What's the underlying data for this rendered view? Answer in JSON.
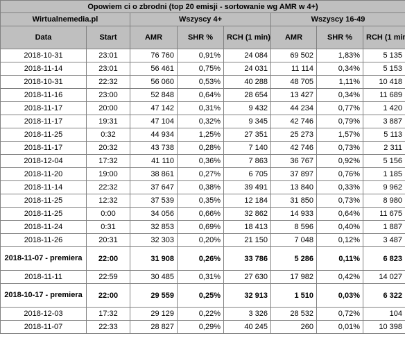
{
  "table": {
    "title": "Opowiem ci o zbrodni (top 20 emisji - sortowanie wg AMR w 4+)",
    "source": "Wirtualnemedia.pl",
    "group_4plus": "Wszyscy 4+",
    "group_16_49": "Wszyscy 16-49",
    "col_date": "Data",
    "col_start": "Start",
    "col_amr": "AMR",
    "col_shr": "SHR %",
    "col_rch": "RCH (1 min)",
    "rows": [
      {
        "date": "2018-10-31",
        "start": "23:01",
        "amr4": "76 760",
        "shr4": "0,91%",
        "rch4": "24 084",
        "amr16": "69 502",
        "shr16": "1,83%",
        "rch16": "5 135",
        "premiere": false
      },
      {
        "date": "2018-11-14",
        "start": "23:01",
        "amr4": "56 461",
        "shr4": "0,75%",
        "rch4": "24 031",
        "amr16": "11 114",
        "shr16": "0,34%",
        "rch16": "5 153",
        "premiere": false
      },
      {
        "date": "2018-10-31",
        "start": "22:32",
        "amr4": "56 060",
        "shr4": "0,53%",
        "rch4": "40 288",
        "amr16": "48 705",
        "shr16": "1,11%",
        "rch16": "10 418",
        "premiere": false
      },
      {
        "date": "2018-11-16",
        "start": "23:00",
        "amr4": "52 848",
        "shr4": "0,64%",
        "rch4": "28 654",
        "amr16": "13 427",
        "shr16": "0,34%",
        "rch16": "11 689",
        "premiere": false
      },
      {
        "date": "2018-11-17",
        "start": "20:00",
        "amr4": "47 142",
        "shr4": "0,31%",
        "rch4": "9 432",
        "amr16": "44 234",
        "shr16": "0,77%",
        "rch16": "1 420",
        "premiere": false
      },
      {
        "date": "2018-11-17",
        "start": "19:31",
        "amr4": "47 104",
        "shr4": "0,32%",
        "rch4": "9 345",
        "amr16": "42 746",
        "shr16": "0,79%",
        "rch16": "3 887",
        "premiere": false
      },
      {
        "date": "2018-11-25",
        "start": "0:32",
        "amr4": "44 934",
        "shr4": "1,25%",
        "rch4": "27 351",
        "amr16": "25 273",
        "shr16": "1,57%",
        "rch16": "5 113",
        "premiere": false
      },
      {
        "date": "2018-11-17",
        "start": "20:32",
        "amr4": "43 738",
        "shr4": "0,28%",
        "rch4": "7 140",
        "amr16": "42 746",
        "shr16": "0,73%",
        "rch16": "2 311",
        "premiere": false
      },
      {
        "date": "2018-12-04",
        "start": "17:32",
        "amr4": "41 110",
        "shr4": "0,36%",
        "rch4": "7 863",
        "amr16": "36 767",
        "shr16": "0,92%",
        "rch16": "5 156",
        "premiere": false
      },
      {
        "date": "2018-11-20",
        "start": "19:00",
        "amr4": "38 861",
        "shr4": "0,27%",
        "rch4": "6 705",
        "amr16": "37 897",
        "shr16": "0,76%",
        "rch16": "1 185",
        "premiere": false
      },
      {
        "date": "2018-11-14",
        "start": "22:32",
        "amr4": "37 647",
        "shr4": "0,38%",
        "rch4": "39 491",
        "amr16": "13 840",
        "shr16": "0,33%",
        "rch16": "9 962",
        "premiere": false
      },
      {
        "date": "2018-11-25",
        "start": "12:32",
        "amr4": "37 539",
        "shr4": "0,35%",
        "rch4": "12 184",
        "amr16": "31 850",
        "shr16": "0,73%",
        "rch16": "8 980",
        "premiere": false
      },
      {
        "date": "2018-11-25",
        "start": "0:00",
        "amr4": "34 056",
        "shr4": "0,66%",
        "rch4": "32 862",
        "amr16": "14 933",
        "shr16": "0,64%",
        "rch16": "11 675",
        "premiere": false
      },
      {
        "date": "2018-11-24",
        "start": "0:31",
        "amr4": "32 853",
        "shr4": "0,69%",
        "rch4": "18 413",
        "amr16": "8 596",
        "shr16": "0,40%",
        "rch16": "1 887",
        "premiere": false
      },
      {
        "date": "2018-11-26",
        "start": "20:31",
        "amr4": "32 303",
        "shr4": "0,20%",
        "rch4": "21 150",
        "amr16": "7 048",
        "shr16": "0,12%",
        "rch16": "3 487",
        "premiere": false
      },
      {
        "date": "2018-11-07 - premiera",
        "start": "22:00",
        "amr4": "31 908",
        "shr4": "0,26%",
        "rch4": "33 786",
        "amr16": "5 286",
        "shr16": "0,11%",
        "rch16": "6 823",
        "premiere": true
      },
      {
        "date": "2018-11-11",
        "start": "22:59",
        "amr4": "30 485",
        "shr4": "0,31%",
        "rch4": "27 630",
        "amr16": "17 982",
        "shr16": "0,42%",
        "rch16": "14 027",
        "premiere": false
      },
      {
        "date": "2018-10-17 - premiera",
        "start": "22:00",
        "amr4": "29 559",
        "shr4": "0,25%",
        "rch4": "32 913",
        "amr16": "1 510",
        "shr16": "0,03%",
        "rch16": "6 322",
        "premiere": true
      },
      {
        "date": "2018-12-03",
        "start": "17:32",
        "amr4": "29 129",
        "shr4": "0,22%",
        "rch4": "3 326",
        "amr16": "28 532",
        "shr16": "0,72%",
        "rch16": "104",
        "premiere": false
      },
      {
        "date": "2018-11-07",
        "start": "22:33",
        "amr4": "28 827",
        "shr4": "0,29%",
        "rch4": "40 245",
        "amr16": "260",
        "shr16": "0,01%",
        "rch16": "10 398",
        "premiere": false
      }
    ]
  }
}
